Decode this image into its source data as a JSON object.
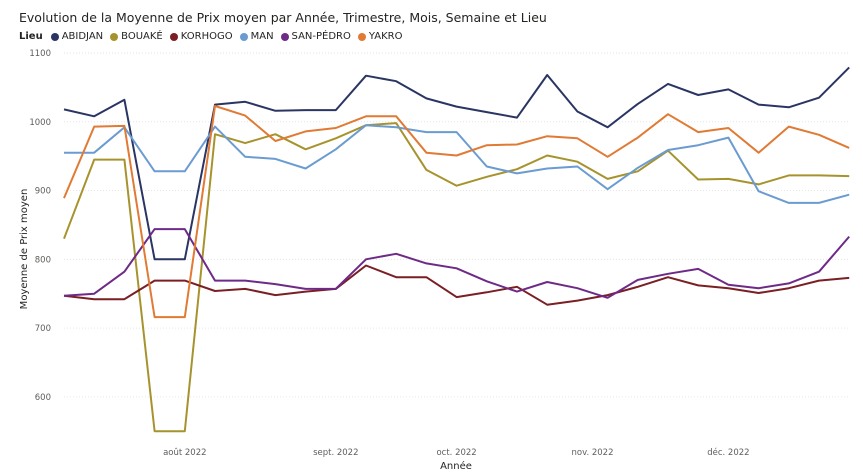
{
  "chart_data": {
    "type": "line",
    "title": "Evolution de la Moyenne de Prix moyen par Année, Trimestre, Mois, Semaine et Lieu",
    "legend_title": "Lieu",
    "xlabel": "Année",
    "ylabel": "Moyenne de Prix moyen",
    "ylim": [
      530,
      1100
    ],
    "y_ticks": [
      600,
      700,
      800,
      900,
      1000,
      1100
    ],
    "x_count": 27,
    "x_ticks": [
      {
        "label": "août 2022",
        "index": 4
      },
      {
        "label": "sept. 2022",
        "index": 9
      },
      {
        "label": "oct. 2022",
        "index": 13
      },
      {
        "label": "nov. 2022",
        "index": 17.5
      },
      {
        "label": "déc. 2022",
        "index": 22
      }
    ],
    "grid": true,
    "legend_position": "top-left",
    "series": [
      {
        "name": "ABIDJAN",
        "color": "#2a3563",
        "values": [
          1018,
          1008,
          1032,
          800,
          800,
          1025,
          1029,
          1016,
          1017,
          1017,
          1067,
          1059,
          1034,
          1022,
          1014,
          1006,
          1068,
          1015,
          992,
          1026,
          1055,
          1039,
          1047,
          1025,
          1021,
          1035,
          1079
        ]
      },
      {
        "name": "BOUAKÉ",
        "color": "#a6932d",
        "values": [
          830,
          945,
          945,
          550,
          550,
          982,
          969,
          982,
          960,
          976,
          995,
          998,
          930,
          907,
          920,
          931,
          951,
          942,
          917,
          928,
          958,
          916,
          917,
          909,
          922,
          922,
          921
        ]
      },
      {
        "name": "KORHOGO",
        "color": "#7a1f24",
        "values": [
          747,
          742,
          742,
          769,
          769,
          754,
          757,
          748,
          753,
          757,
          791,
          774,
          774,
          745,
          752,
          760,
          734,
          740,
          748,
          760,
          774,
          762,
          758,
          751,
          758,
          769,
          773
        ]
      },
      {
        "name": "MAN",
        "color": "#6b9bd1",
        "values": [
          955,
          955,
          992,
          928,
          928,
          993,
          949,
          946,
          932,
          960,
          995,
          992,
          985,
          985,
          935,
          925,
          932,
          935,
          902,
          933,
          959,
          966,
          977,
          899,
          882,
          882,
          894
        ]
      },
      {
        "name": "SAN-PÉDRO",
        "color": "#6e2a87",
        "values": [
          747,
          750,
          782,
          844,
          844,
          769,
          769,
          764,
          757,
          757,
          800,
          808,
          794,
          787,
          768,
          753,
          767,
          758,
          744,
          770,
          779,
          786,
          763,
          758,
          765,
          782,
          833
        ]
      },
      {
        "name": "YAKRO",
        "color": "#e07a34",
        "values": [
          889,
          993,
          994,
          716,
          716,
          1023,
          1009,
          972,
          986,
          991,
          1008,
          1008,
          955,
          951,
          966,
          967,
          979,
          976,
          949,
          977,
          1011,
          985,
          991,
          955,
          993,
          981,
          962
        ]
      }
    ]
  }
}
